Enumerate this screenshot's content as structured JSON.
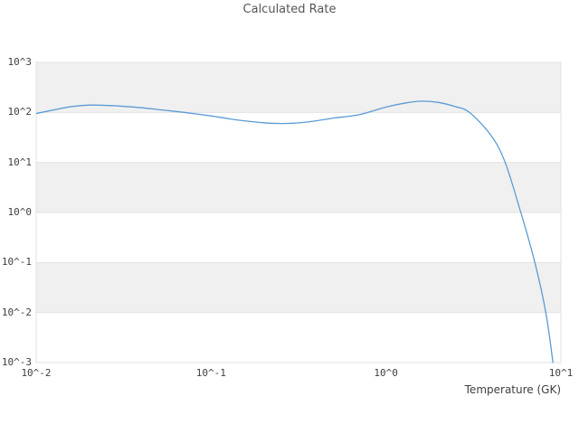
{
  "title": "Calculated Rate",
  "xaxis": {
    "label": "Temperature (GK)",
    "ticks": [
      "10^-2",
      "10^-1",
      "10^0",
      "10^1"
    ]
  },
  "yaxis": {
    "ticks": [
      "10^3",
      "10^2",
      "10^1",
      "10^0",
      "10^-1",
      "10^-2",
      "10^-3"
    ]
  },
  "colors": {
    "line": "#5b9bd5",
    "band": "#f0f0f0",
    "grid": "#e2e2e2",
    "tick_text": "#3f3f3f",
    "title_text": "#555555",
    "background": "#ffffff"
  },
  "chart_data": {
    "type": "line",
    "title": "Calculated Rate",
    "xlabel": "Temperature (GK)",
    "ylabel": "",
    "xscale": "log",
    "yscale": "log",
    "xlim": [
      0.01,
      10
    ],
    "ylim": [
      0.001,
      1000
    ],
    "x_tick_exponents": [
      -2,
      -1,
      0,
      1
    ],
    "y_tick_exponents": [
      3,
      2,
      1,
      0,
      -1,
      -2,
      -3
    ],
    "grid": "horizontal-decade-bands",
    "legend": false,
    "series": [
      {
        "name": "calculated-rate",
        "color": "#5b9bd5",
        "x": [
          0.01,
          0.013,
          0.016,
          0.021,
          0.03,
          0.04,
          0.055,
          0.07,
          0.1,
          0.14,
          0.2,
          0.26,
          0.35,
          0.5,
          0.7,
          1.0,
          1.3,
          1.6,
          2.0,
          2.5,
          3.0,
          4.0,
          4.8,
          5.9,
          7.1,
          8.2,
          9.0
        ],
        "y": [
          95,
          115,
          131,
          140,
          134,
          124,
          110,
          100,
          85,
          71,
          62,
          60,
          64,
          77,
          90,
          128,
          155,
          168,
          158,
          130,
          100,
          34,
          10,
          1.0,
          0.1,
          0.01,
          0.001
        ]
      }
    ]
  }
}
